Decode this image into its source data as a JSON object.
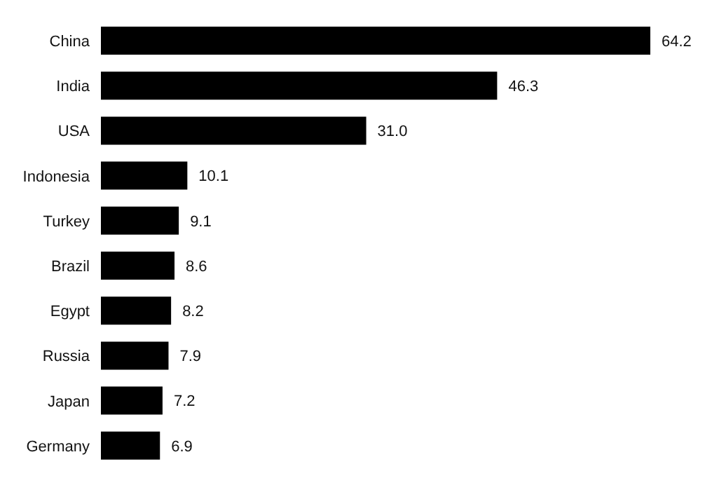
{
  "chart_data": {
    "type": "bar",
    "orientation": "horizontal",
    "categories": [
      "China",
      "India",
      "USA",
      "Indonesia",
      "Turkey",
      "Brazil",
      "Egypt",
      "Russia",
      "Japan",
      "Germany"
    ],
    "values": [
      64.2,
      46.3,
      31.0,
      10.1,
      9.1,
      8.6,
      8.2,
      7.9,
      7.2,
      6.9
    ],
    "value_labels": [
      "64.2",
      "46.3",
      "31.0",
      "10.1",
      "9.1",
      "8.6",
      "8.2",
      "7.9",
      "7.2",
      "6.9"
    ],
    "color": "#000000"
  }
}
